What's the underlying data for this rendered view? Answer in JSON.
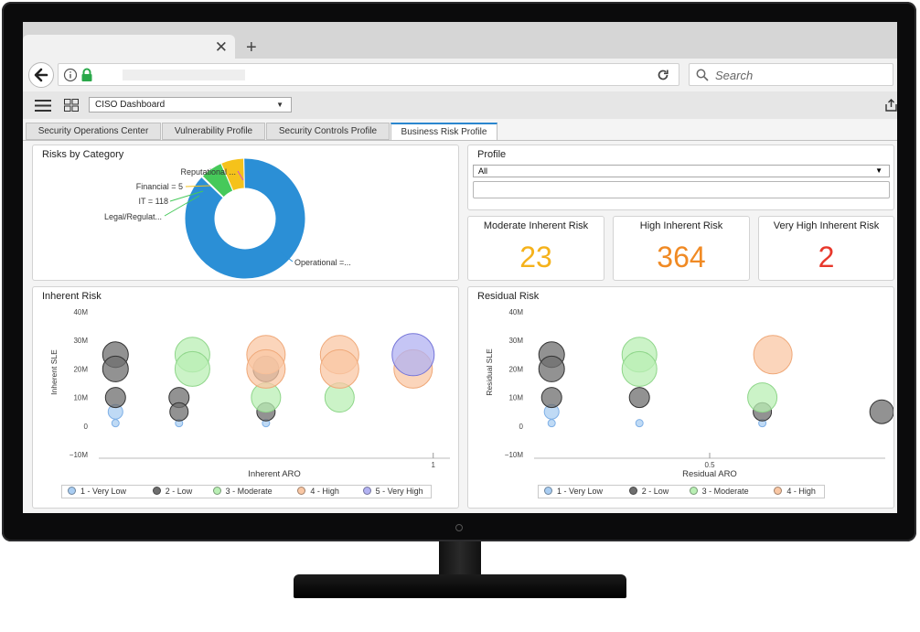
{
  "browser": {
    "close_glyph": "✕",
    "new_tab_glyph": "+",
    "search_placeholder": "Search"
  },
  "app": {
    "dashboard": "CISO Dashboard"
  },
  "tabs": [
    {
      "label": "Security Operations Center"
    },
    {
      "label": "Vulnerability Profile"
    },
    {
      "label": "Security Controls Profile"
    },
    {
      "label": "Business Risk Profile",
      "active": true
    }
  ],
  "risks_by_category": {
    "title": "Risks by Category",
    "labels": [
      "Reputational ...",
      "Financial = 5",
      "IT = 118",
      "Legal/Regulat...",
      "Operational =..."
    ]
  },
  "profile": {
    "title": "Profile",
    "selected": "All"
  },
  "kpis": [
    {
      "title": "Moderate Inherent Risk",
      "value": "23",
      "color": "#f5b21b"
    },
    {
      "title": "High Inherent Risk",
      "value": "364",
      "color": "#f08a24"
    },
    {
      "title": "Very High Inherent Risk",
      "value": "2",
      "color": "#e8382c"
    }
  ],
  "colors": {
    "very_low": "#a9cdf2",
    "low": "#6e6e6e",
    "moderate": "#b9efb4",
    "high": "#f9c7a4",
    "very_high": "#b2b2f2",
    "operational": "#2b8fd6",
    "it": "#f5c21b",
    "financial": "#46c95a"
  },
  "chart_data": [
    {
      "type": "pie",
      "title": "Risks by Category",
      "donut": true,
      "categories": [
        "Operational",
        "IT",
        "Financial",
        "Legal/Regulatory",
        "Reputational"
      ],
      "values": [
        1050,
        118,
        5,
        1,
        1
      ],
      "labels": [
        "Operational =...",
        "IT = 118",
        "Financial = 5",
        "Legal/Regulat...",
        "Reputational ..."
      ]
    },
    {
      "type": "scatter",
      "title": "Inherent Risk",
      "xlabel": "Inherent ARO",
      "ylabel": "Inherent SLE",
      "yticks": [
        "40M",
        "30M",
        "20M",
        "10M",
        "0",
        "−10M"
      ],
      "ytick_values": [
        40,
        30,
        20,
        10,
        0,
        -10
      ],
      "xticks": [
        "1"
      ],
      "xtick_values": [
        1
      ],
      "xlim": [
        0,
        1.05
      ],
      "ylim": [
        -10,
        40
      ],
      "legend_position": "bottom",
      "series": [
        {
          "name": "1 - Very Low",
          "color_key": "very_low",
          "points": [
            [
              0.05,
              5
            ],
            [
              0.05,
              1
            ],
            [
              0.24,
              1
            ],
            [
              0.5,
              1
            ]
          ]
        },
        {
          "name": "2 - Low",
          "color_key": "low",
          "points": [
            [
              0.05,
              25
            ],
            [
              0.05,
              20
            ],
            [
              0.05,
              10
            ],
            [
              0.24,
              10
            ],
            [
              0.24,
              5
            ],
            [
              0.5,
              20
            ],
            [
              0.5,
              5
            ]
          ]
        },
        {
          "name": "3 - Moderate",
          "color_key": "moderate",
          "points": [
            [
              0.28,
              25
            ],
            [
              0.28,
              20
            ],
            [
              0.5,
              10
            ],
            [
              0.72,
              10
            ]
          ]
        },
        {
          "name": "4 - High",
          "color_key": "high",
          "points": [
            [
              0.5,
              25
            ],
            [
              0.5,
              20
            ],
            [
              0.72,
              25
            ],
            [
              0.72,
              20
            ],
            [
              0.94,
              20
            ]
          ]
        },
        {
          "name": "5 - Very High",
          "color_key": "very_high",
          "points": [
            [
              0.94,
              25
            ]
          ]
        }
      ]
    },
    {
      "type": "scatter",
      "title": "Residual Risk",
      "xlabel": "Residual ARO",
      "ylabel": "Residual SLE",
      "yticks": [
        "40M",
        "30M",
        "20M",
        "10M",
        "0",
        "−10M"
      ],
      "ytick_values": [
        40,
        30,
        20,
        10,
        0,
        -10
      ],
      "xticks": [
        "0.5"
      ],
      "xtick_values": [
        0.5
      ],
      "xlim": [
        0,
        1
      ],
      "ylim": [
        -10,
        40
      ],
      "legend_position": "bottom",
      "series": [
        {
          "name": "1 - Very Low",
          "color_key": "very_low",
          "points": [
            [
              0.05,
              5
            ],
            [
              0.05,
              1
            ],
            [
              0.3,
              1
            ],
            [
              0.65,
              1
            ]
          ]
        },
        {
          "name": "2 - Low",
          "color_key": "low",
          "points": [
            [
              0.05,
              25
            ],
            [
              0.05,
              20
            ],
            [
              0.05,
              10
            ],
            [
              0.3,
              10
            ],
            [
              0.65,
              5
            ],
            [
              0.99,
              5
            ]
          ]
        },
        {
          "name": "3 - Moderate",
          "color_key": "moderate",
          "points": [
            [
              0.3,
              25
            ],
            [
              0.3,
              20
            ],
            [
              0.65,
              10
            ]
          ]
        },
        {
          "name": "4 - High",
          "color_key": "high",
          "points": [
            [
              0.68,
              25
            ]
          ]
        }
      ]
    }
  ]
}
